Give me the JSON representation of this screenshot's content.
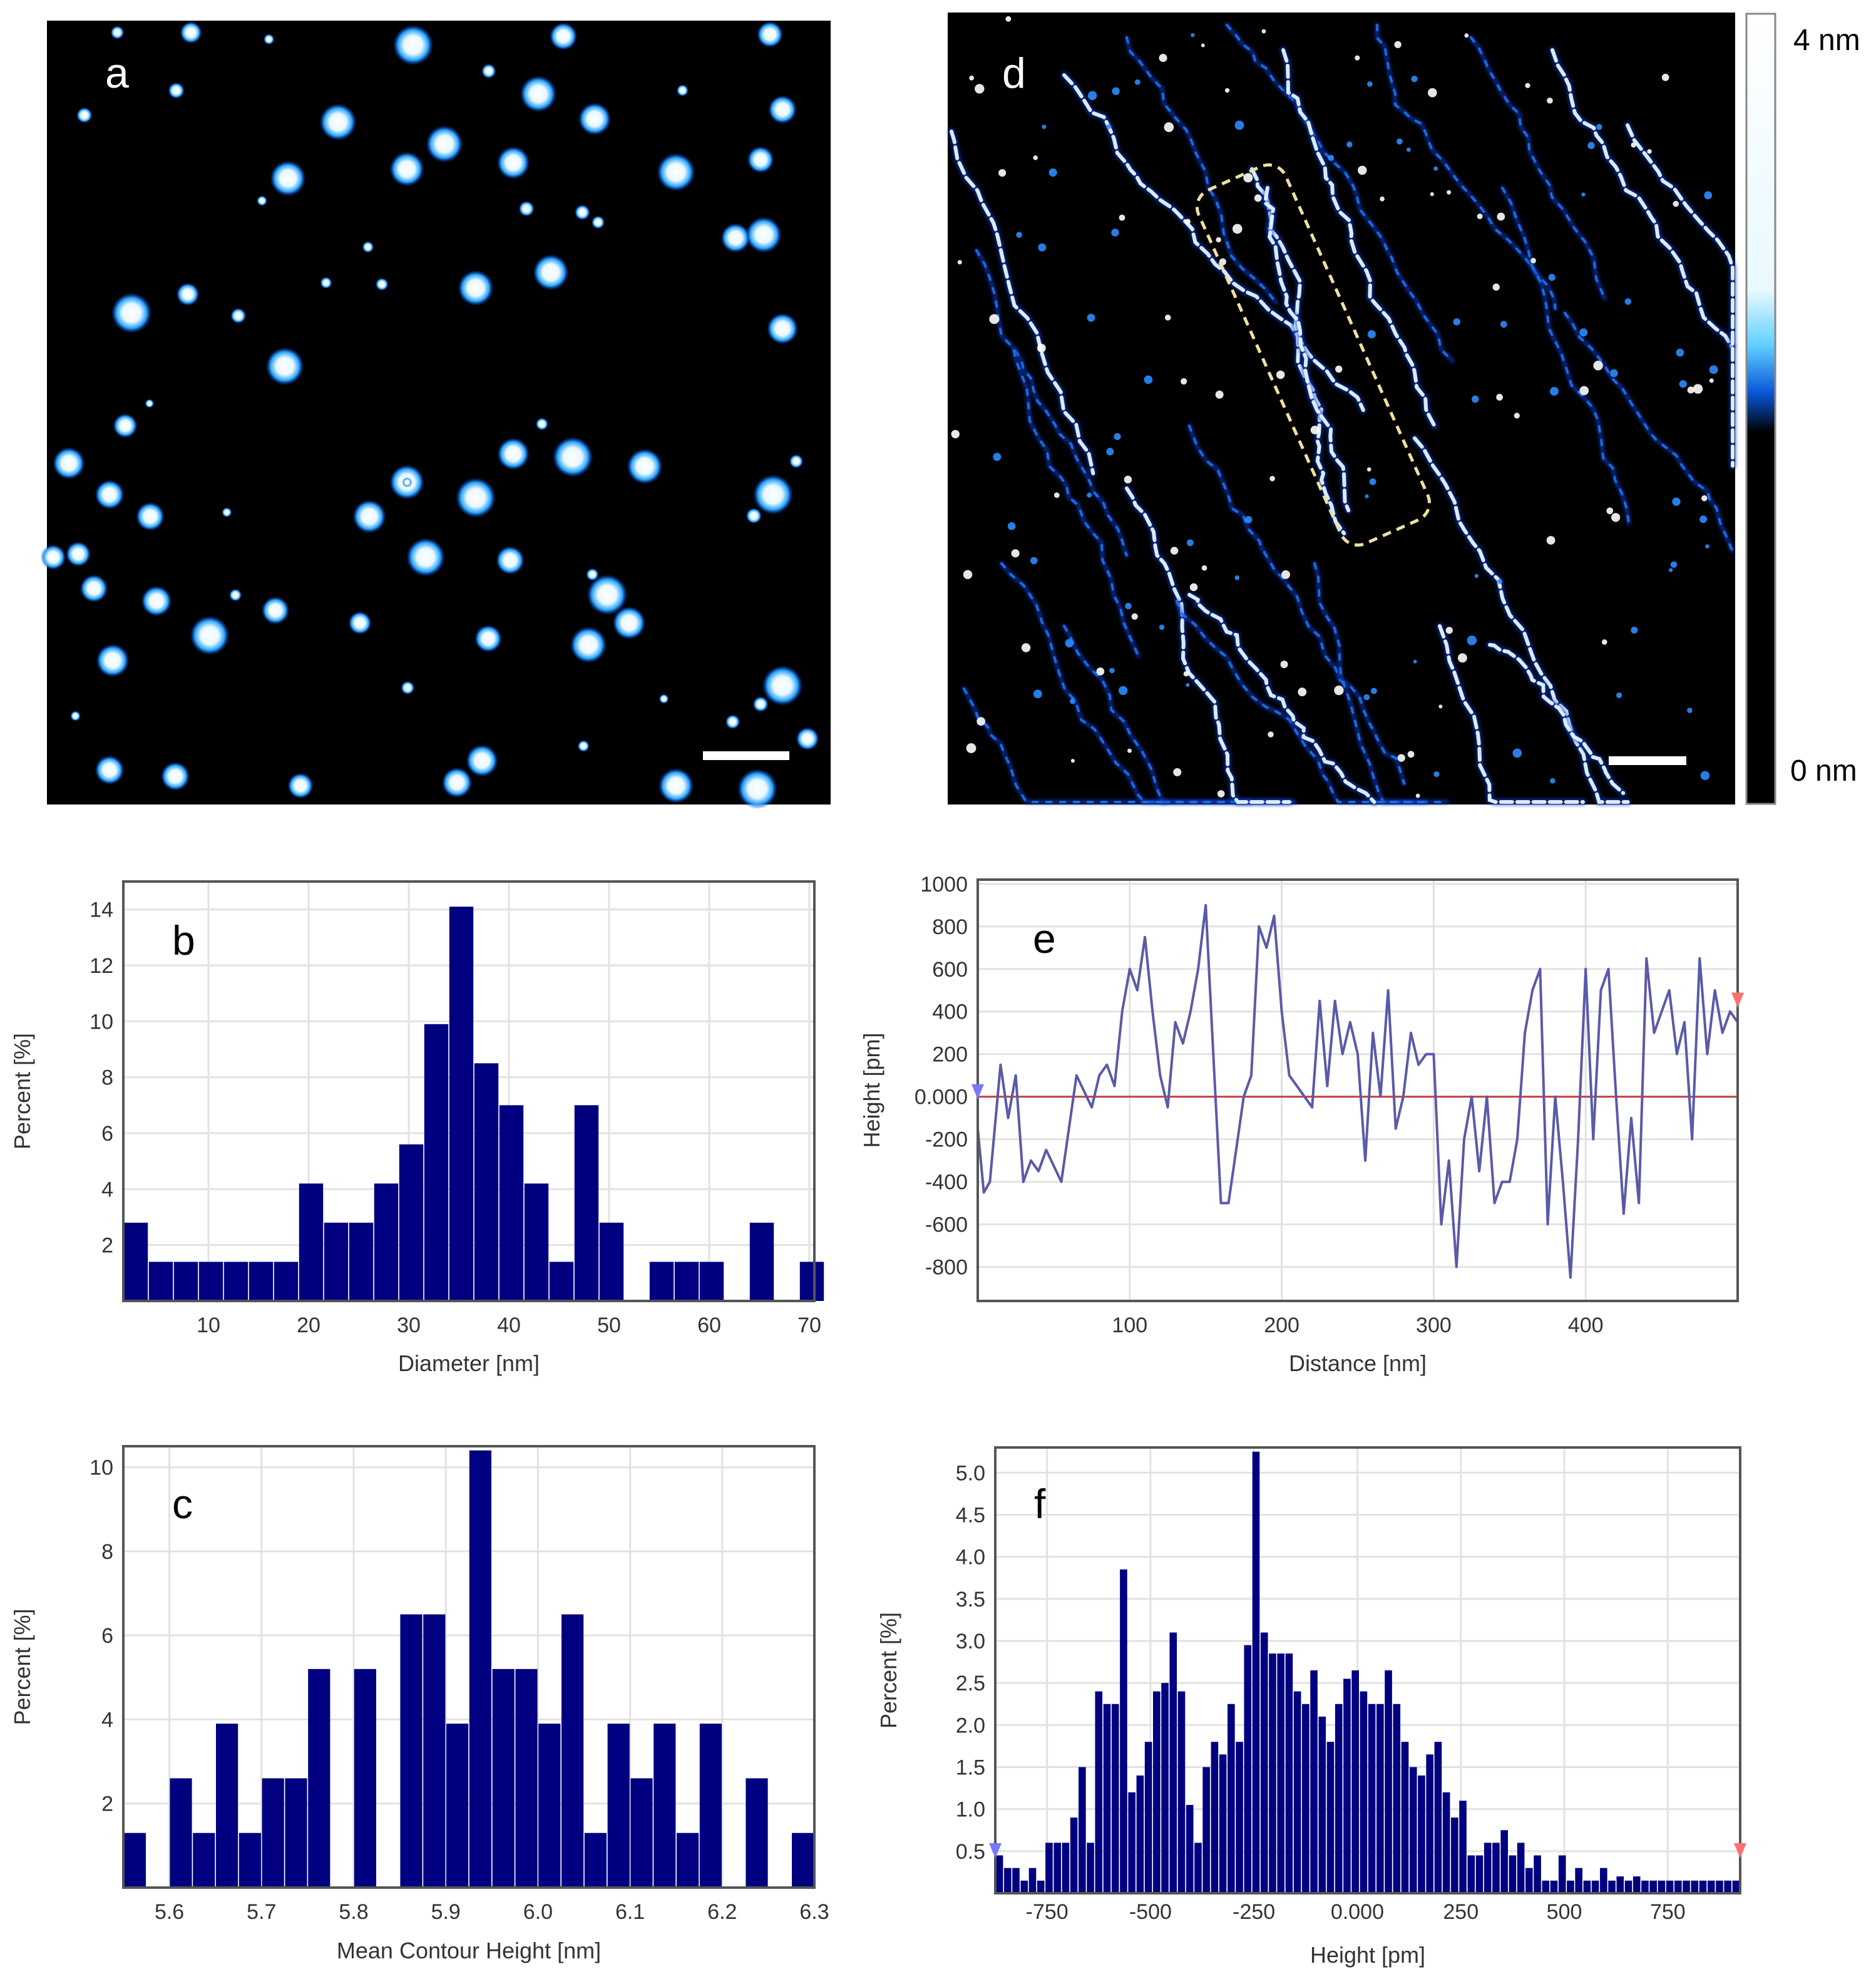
{
  "panels": {
    "a": {
      "label": "a"
    },
    "d": {
      "label": "d"
    }
  },
  "colorbar": {
    "max_label": "4 nm",
    "min_label": "0 nm"
  },
  "colors": {
    "bar": "#000080",
    "line": "#5a5aa8",
    "zero_line": "#c04040",
    "grid": "#e2e2e2",
    "frame": "#555555",
    "marker_left": "#7878ff",
    "marker_right": "#ff7070"
  },
  "chart_data": [
    {
      "id": "b",
      "type": "bar",
      "panel_label": "b",
      "xlabel": "Diameter [nm]",
      "ylabel": "Percent [%]",
      "xlim": [
        1.5,
        70.5
      ],
      "ylim": [
        0,
        15
      ],
      "xticks": [
        10,
        20,
        30,
        40,
        50,
        60,
        70
      ],
      "yticks": [
        2,
        4,
        6,
        8,
        10,
        12,
        14
      ],
      "bin_width": 2.5,
      "bin_starts": [
        1.5,
        4,
        6.5,
        9,
        11.5,
        14,
        16.5,
        19,
        21.5,
        24,
        26.5,
        29,
        31.5,
        34,
        36.5,
        39,
        41.5,
        44,
        46.5,
        49,
        51.5,
        54,
        56.5,
        59,
        61.5,
        64,
        66.5,
        69
      ],
      "values": [
        2.8,
        1.4,
        1.4,
        1.4,
        1.4,
        1.4,
        1.4,
        4.2,
        2.8,
        2.8,
        4.2,
        5.6,
        9.9,
        14.1,
        8.5,
        7.0,
        4.2,
        1.4,
        7.0,
        2.8,
        0,
        1.4,
        1.4,
        1.4,
        0,
        2.8,
        0,
        1.4
      ],
      "grid": true
    },
    {
      "id": "c",
      "type": "bar",
      "panel_label": "c",
      "xlabel": "Mean Contour Height [nm]",
      "ylabel": "Percent [%]",
      "xlim": [
        5.55,
        6.3
      ],
      "ylim": [
        0,
        10.5
      ],
      "xticks": [
        "5.6",
        "5.7",
        "5.8",
        "5.9",
        "6.0",
        "6.1",
        "6.2",
        "6.3"
      ],
      "yticks": [
        2,
        4,
        6,
        8,
        10
      ],
      "bin_width": 0.025,
      "bin_starts": [
        5.55,
        5.575,
        5.6,
        5.625,
        5.65,
        5.675,
        5.7,
        5.725,
        5.75,
        5.775,
        5.8,
        5.825,
        5.85,
        5.875,
        5.9,
        5.925,
        5.95,
        5.975,
        6.0,
        6.025,
        6.05,
        6.075,
        6.1,
        6.125,
        6.15,
        6.175,
        6.2,
        6.225,
        6.25,
        6.275
      ],
      "values": [
        1.3,
        0,
        2.6,
        1.3,
        3.9,
        1.3,
        2.6,
        2.6,
        5.2,
        0,
        5.2,
        0,
        6.5,
        6.5,
        3.9,
        10.4,
        5.2,
        5.2,
        3.9,
        6.5,
        1.3,
        3.9,
        2.6,
        3.9,
        1.3,
        3.9,
        0,
        2.6,
        0,
        1.3
      ],
      "grid": true
    },
    {
      "id": "e",
      "type": "line",
      "panel_label": "e",
      "xlabel": "Distance [nm]",
      "ylabel": "Height [pm]",
      "xlim": [
        0,
        500
      ],
      "ylim": [
        -960,
        1020
      ],
      "xticks": [
        100,
        200,
        300,
        400
      ],
      "yticks": [
        "1000",
        "800",
        "600",
        "400",
        "200",
        "0.000",
        "-200",
        "-400",
        "-600",
        "-800"
      ],
      "x": [
        0,
        4,
        8,
        15,
        20,
        25,
        30,
        35,
        40,
        45,
        55,
        65,
        75,
        80,
        85,
        90,
        95,
        100,
        105,
        110,
        115,
        120,
        125,
        130,
        135,
        140,
        145,
        150,
        155,
        160,
        165,
        170,
        175,
        180,
        185,
        190,
        195,
        200,
        205,
        210,
        215,
        220,
        225,
        230,
        235,
        240,
        245,
        250,
        255,
        260,
        265,
        270,
        275,
        280,
        285,
        290,
        295,
        300,
        305,
        310,
        315,
        320,
        325,
        330,
        335,
        340,
        345,
        350,
        355,
        360,
        365,
        370,
        375,
        380,
        385,
        390,
        395,
        400,
        405,
        410,
        415,
        420,
        425,
        430,
        435,
        440,
        445,
        450,
        455,
        460,
        465,
        470,
        475,
        480,
        485,
        490,
        495,
        500
      ],
      "y": [
        -150,
        -450,
        -400,
        150,
        -100,
        100,
        -400,
        -300,
        -350,
        -250,
        -400,
        100,
        -50,
        100,
        150,
        50,
        400,
        600,
        500,
        750,
        400,
        100,
        -50,
        350,
        250,
        400,
        600,
        900,
        200,
        -500,
        -500,
        -250,
        0,
        100,
        800,
        700,
        850,
        400,
        100,
        50,
        0,
        -50,
        450,
        50,
        450,
        200,
        350,
        200,
        -300,
        300,
        0,
        500,
        -150,
        0,
        300,
        150,
        200,
        200,
        -600,
        -300,
        -800,
        -200,
        0,
        -350,
        0,
        -500,
        -400,
        -400,
        -200,
        300,
        500,
        600,
        -600,
        0,
        -400,
        -850,
        -200,
        600,
        -200,
        500,
        600,
        0,
        -550,
        -100,
        -500,
        650,
        300,
        400,
        500,
        200,
        350,
        -200,
        650,
        200,
        500,
        300,
        400,
        350
      ],
      "zero_line": true,
      "grid": true
    },
    {
      "id": "f",
      "type": "bar",
      "panel_label": "f",
      "xlabel": "Height [pm]",
      "ylabel": "Percent [%]",
      "xlim": [
        -875,
        925
      ],
      "ylim": [
        0,
        5.3
      ],
      "xticks": [
        "-750",
        "-500",
        "-250",
        "0.000",
        "250",
        "500",
        "750"
      ],
      "yticks": [
        "0.5",
        "1.0",
        "1.5",
        "2.0",
        "2.5",
        "3.0",
        "3.5",
        "4.0",
        "4.5",
        "5.0"
      ],
      "bin_width": 20,
      "bin_starts": [
        -875,
        -855,
        -835,
        -815,
        -795,
        -775,
        -755,
        -735,
        -715,
        -695,
        -675,
        -655,
        -635,
        -615,
        -595,
        -575,
        -555,
        -535,
        -515,
        -495,
        -475,
        -455,
        -435,
        -415,
        -395,
        -375,
        -355,
        -335,
        -315,
        -295,
        -275,
        -255,
        -235,
        -215,
        -195,
        -175,
        -155,
        -135,
        -115,
        -95,
        -75,
        -55,
        -35,
        -15,
        5,
        25,
        45,
        65,
        85,
        105,
        125,
        145,
        165,
        185,
        205,
        225,
        245,
        265,
        285,
        305,
        325,
        345,
        365,
        385,
        405,
        425,
        445,
        465,
        485,
        505,
        525,
        545,
        565,
        585,
        605,
        625,
        645,
        665,
        685,
        705,
        725,
        745,
        765,
        785,
        805,
        825,
        845,
        865,
        885,
        905
      ],
      "values": [
        0.45,
        0.3,
        0.3,
        0.15,
        0.3,
        0.15,
        0.6,
        0.6,
        0.6,
        0.9,
        1.5,
        0.6,
        2.4,
        2.25,
        2.25,
        3.85,
        1.2,
        1.4,
        1.8,
        2.4,
        2.5,
        3.1,
        2.4,
        1.05,
        0.6,
        1.5,
        1.8,
        1.65,
        2.25,
        1.8,
        2.95,
        5.25,
        3.1,
        2.85,
        2.85,
        2.85,
        2.4,
        2.25,
        2.65,
        2.1,
        1.8,
        2.25,
        2.55,
        2.65,
        2.4,
        2.25,
        2.25,
        2.65,
        2.25,
        1.8,
        1.5,
        1.4,
        1.65,
        1.8,
        1.2,
        0.9,
        1.1,
        0.45,
        0.45,
        0.6,
        0.6,
        0.75,
        0.45,
        0.6,
        0.3,
        0.45,
        0.15,
        0.15,
        0.45,
        0.15,
        0.3,
        0.15,
        0.15,
        0.3,
        0.15,
        0.2,
        0.15,
        0.2,
        0.15,
        0.15,
        0.15,
        0.15,
        0.15,
        0.15,
        0.15,
        0.15,
        0.15,
        0.15,
        0.15,
        0.15
      ],
      "grid": true
    }
  ]
}
